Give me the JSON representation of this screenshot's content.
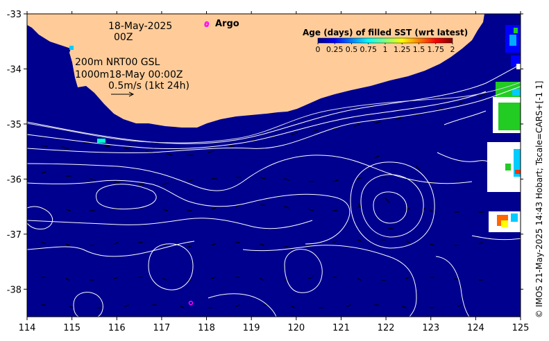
{
  "chart_data": {
    "type": "map",
    "xlim": [
      114,
      125
    ],
    "ylim": [
      -38.5,
      -33
    ],
    "x_ticks": [
      "114",
      "115",
      "116",
      "117",
      "118",
      "119",
      "120",
      "121",
      "122",
      "123",
      "124",
      "125"
    ],
    "y_ticks": [
      "-33",
      "-34",
      "-35",
      "-36",
      "-37",
      "-38"
    ],
    "date_line1": "18-May-2025",
    "date_line2": "00Z",
    "depth_line1": "200m  NRT00 GSL",
    "depth_line2": "1000m18-May 00:00Z",
    "velocity_scale": "0.5m/s (1kt 24h)",
    "argo_label": "Argo",
    "argo_floats": [
      {
        "lon": 118.0,
        "lat": -33.2
      },
      {
        "lon": 117.65,
        "lat": -38.25
      }
    ],
    "colorbar_title": "Age (days) of filled SST (wrt latest)",
    "colorbar_tick_labels": [
      "0",
      "0.25",
      "0.5",
      "0.75",
      "1",
      "1.25",
      "1.5",
      "1.75",
      "2"
    ],
    "colorbar_tick_values": [
      0,
      0.25,
      0.5,
      0.75,
      1,
      1.25,
      1.5,
      1.75,
      2
    ],
    "credit": "© IMOS 21-May-2025 14:43 Hobart; Tscale=CARS+[-1 1]",
    "colors": {
      "ocean": "#00008f",
      "land": "#ffcc99",
      "contour": "#ffffff",
      "argo": "#ff00ff"
    }
  }
}
